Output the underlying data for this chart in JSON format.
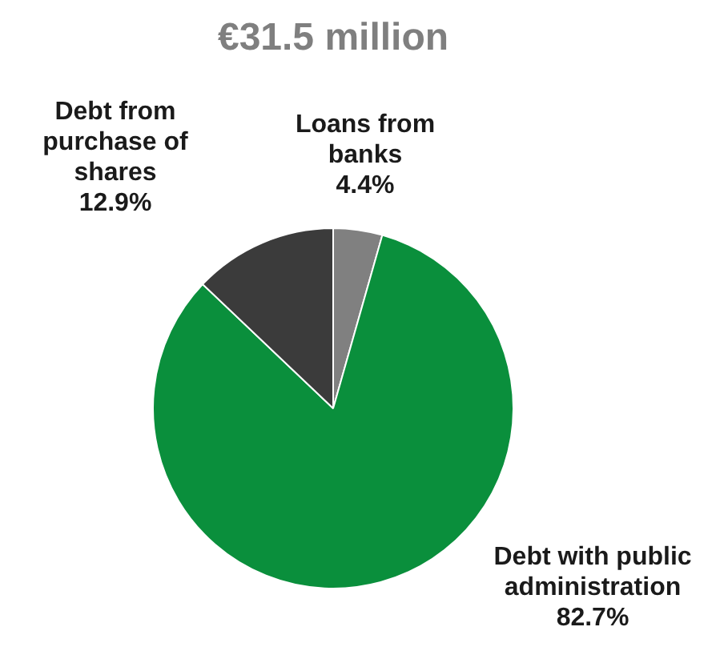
{
  "chart_data": {
    "type": "pie",
    "title": "€31.5 million",
    "categories": [
      "Loans from banks",
      "Debt with public administration",
      "Debt from purchase of shares"
    ],
    "values": [
      4.4,
      82.7,
      12.9
    ],
    "colors": [
      "#808080",
      "#0a8f3c",
      "#3b3b3b"
    ],
    "value_labels": [
      "4.4%",
      "82.7%",
      "12.9%"
    ],
    "legend": false
  }
}
